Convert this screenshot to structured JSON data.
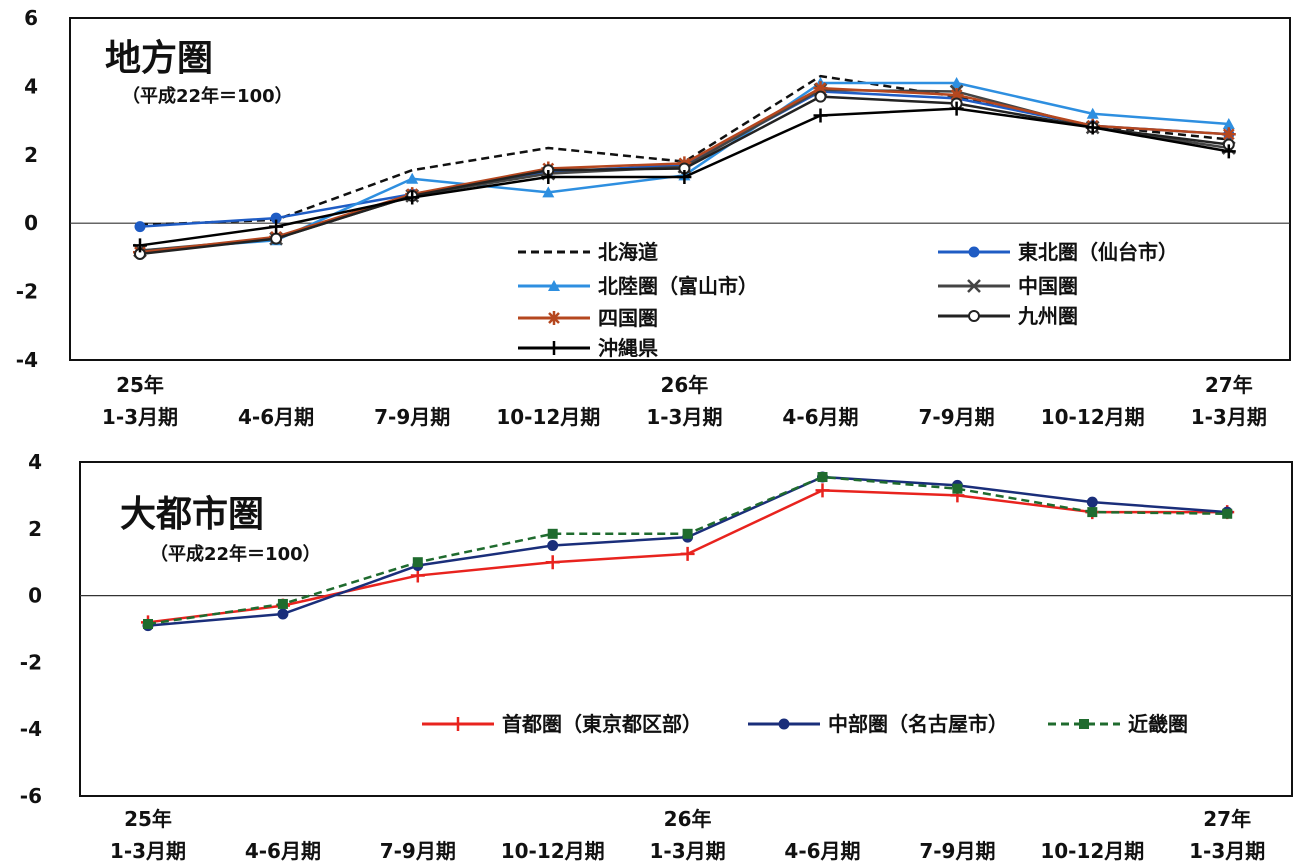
{
  "categories": [
    {
      "year": "25年",
      "period": "1-3月期"
    },
    {
      "year": "",
      "period": "4-6月期"
    },
    {
      "year": "",
      "period": "7-9月期"
    },
    {
      "year": "",
      "period": "10-12月期"
    },
    {
      "year": "26年",
      "period": "1-3月期"
    },
    {
      "year": "",
      "period": "4-6月期"
    },
    {
      "year": "",
      "period": "7-9月期"
    },
    {
      "year": "",
      "period": "10-12月期"
    },
    {
      "year": "27年",
      "period": "1-3月期"
    }
  ],
  "chart_data": [
    {
      "type": "line",
      "title": "地方圏",
      "subtitle": "（平成22年＝100）",
      "ylim": [
        -4,
        6
      ],
      "yticks": [
        -4,
        -2,
        0,
        2,
        4,
        6
      ],
      "grid": false,
      "legend_position": "bottom-right",
      "series": [
        {
          "name": "北海道",
          "color": "#111111",
          "marker": "none",
          "dash": "dashed",
          "values": [
            -0.05,
            0.1,
            1.55,
            2.2,
            1.8,
            4.3,
            3.7,
            2.85,
            2.45
          ]
        },
        {
          "name": "東北圏（仙台市）",
          "color": "#1f5cc4",
          "marker": "circle",
          "dash": "solid",
          "values": [
            -0.1,
            0.15,
            0.85,
            1.5,
            1.7,
            3.85,
            3.65,
            2.85,
            2.6
          ]
        },
        {
          "name": "北陸圏（富山市）",
          "color": "#2e8fe0",
          "marker": "triangle",
          "dash": "solid",
          "values": [
            -0.8,
            -0.5,
            1.3,
            0.9,
            1.4,
            4.1,
            4.1,
            3.2,
            2.9
          ]
        },
        {
          "name": "中国圏",
          "color": "#444444",
          "marker": "x",
          "dash": "solid",
          "values": [
            -0.8,
            -0.45,
            0.8,
            1.45,
            1.65,
            3.9,
            3.85,
            2.8,
            2.2
          ]
        },
        {
          "name": "四国圏",
          "color": "#b5471f",
          "marker": "star",
          "dash": "solid",
          "values": [
            -0.85,
            -0.4,
            0.85,
            1.6,
            1.75,
            3.95,
            3.75,
            2.85,
            2.6
          ]
        },
        {
          "name": "九州圏",
          "color": "#222222",
          "marker": "open-circle",
          "dash": "solid",
          "values": [
            -0.9,
            -0.45,
            0.8,
            1.55,
            1.6,
            3.7,
            3.5,
            2.8,
            2.3
          ]
        },
        {
          "name": "沖縄県",
          "color": "#000000",
          "marker": "plus",
          "dash": "solid",
          "values": [
            -0.65,
            -0.1,
            0.75,
            1.35,
            1.35,
            3.15,
            3.35,
            2.8,
            2.1
          ]
        }
      ]
    },
    {
      "type": "line",
      "title": "大都市圏",
      "subtitle": "（平成22年＝100）",
      "ylim": [
        -6,
        4
      ],
      "yticks": [
        -6,
        -4,
        -2,
        0,
        2,
        4
      ],
      "grid": false,
      "legend_position": "bottom-right",
      "series": [
        {
          "name": "首都圏（東京都区部）",
          "color": "#e8231e",
          "marker": "plus",
          "dash": "solid",
          "values": [
            -0.8,
            -0.3,
            0.6,
            1.0,
            1.25,
            3.15,
            3.0,
            2.5,
            2.5
          ]
        },
        {
          "name": "中部圏（名古屋市）",
          "color": "#1a2e7a",
          "marker": "circle",
          "dash": "solid",
          "values": [
            -0.9,
            -0.55,
            0.9,
            1.5,
            1.75,
            3.55,
            3.3,
            2.8,
            2.5
          ]
        },
        {
          "name": "近畿圏",
          "color": "#1f6b2e",
          "marker": "square",
          "dash": "dashed",
          "values": [
            -0.85,
            -0.25,
            1.0,
            1.85,
            1.85,
            3.55,
            3.2,
            2.5,
            2.45
          ]
        }
      ]
    }
  ]
}
